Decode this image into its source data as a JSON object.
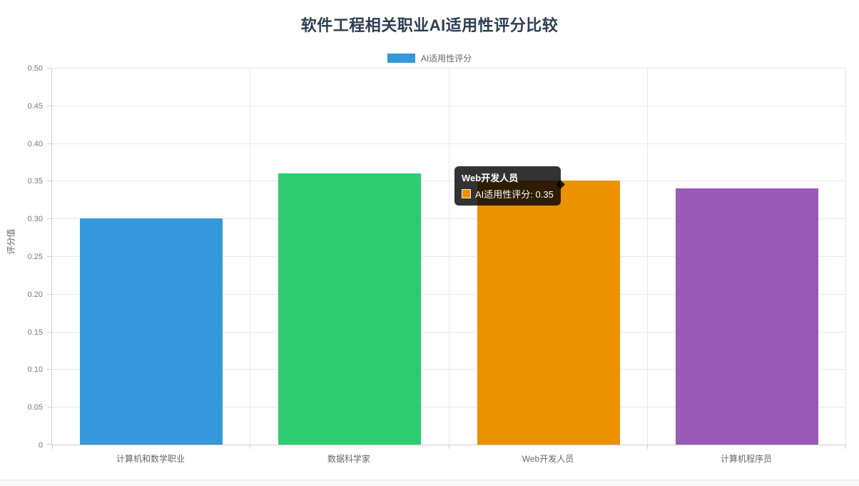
{
  "page": {
    "title": "软件工程相关职业AI适用性评分比较"
  },
  "legend": {
    "label": "AI适用性评分",
    "swatch_color": "#3498db"
  },
  "chart_data": {
    "type": "bar",
    "title": "软件工程相关职业AI适用性评分比较",
    "categories": [
      "计算机和数学职业",
      "数据科学家",
      "Web开发人员",
      "计算机程序员"
    ],
    "series": [
      {
        "name": "AI适用性评分",
        "values": [
          0.3,
          0.36,
          0.35,
          0.34
        ]
      }
    ],
    "bar_colors": [
      "#3498db",
      "#2ecc71",
      "#ec9100",
      "#9b59b6"
    ],
    "xlabel": "",
    "ylabel": "评分值",
    "ylim": [
      0,
      0.5
    ],
    "ytick_step": 0.05,
    "ytick_labels": [
      "0",
      "0.05",
      "0.10",
      "0.15",
      "0.20",
      "0.25",
      "0.30",
      "0.35",
      "0.40",
      "0.45",
      "0.50"
    ],
    "grid": true,
    "legend_position": "top"
  },
  "tooltip": {
    "title": "Web开发人员",
    "swatch_color": "#ec9100",
    "label": "AI适用性评分: 0.35"
  }
}
